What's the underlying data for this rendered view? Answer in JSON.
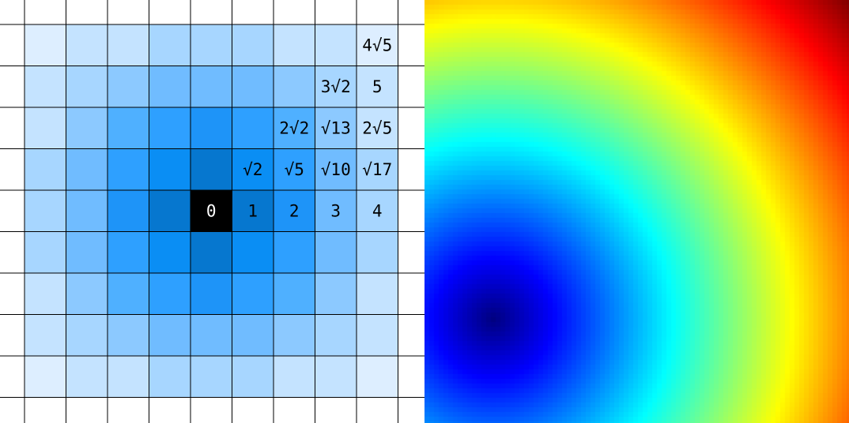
{
  "distance_grid": {
    "origin_label": "0",
    "colors": {
      "zero": "#000000",
      "d1": "#0677CF",
      "d1_4": "#0A8EF4",
      "d2": "#1E94F8",
      "d2_2": "#2EA0FF",
      "d2_8": "#4FB0FF",
      "d3_2": "#70BCFF",
      "d3_6": "#8CC9FF",
      "d4_2": "#A7D6FF",
      "d5": "#C4E3FF",
      "d5_6": "#DDEEFF",
      "empty": "#FFFFFF",
      "gridline": "#000000"
    },
    "labeled_cells": [
      {
        "text": "4√5"
      },
      {
        "text": "3√2"
      },
      {
        "text": "5"
      },
      {
        "text": "2√2"
      },
      {
        "text": "√13"
      },
      {
        "text": "2√5"
      },
      {
        "text": "√2"
      },
      {
        "text": "√5"
      },
      {
        "text": "√10"
      },
      {
        "text": "√17"
      },
      {
        "text": "1"
      },
      {
        "text": "2"
      },
      {
        "text": "3"
      },
      {
        "text": "4"
      }
    ]
  },
  "distance_heatmap": {
    "colormap": "jet",
    "minimum_location": "lower-left",
    "maximum_location": "top-right"
  }
}
